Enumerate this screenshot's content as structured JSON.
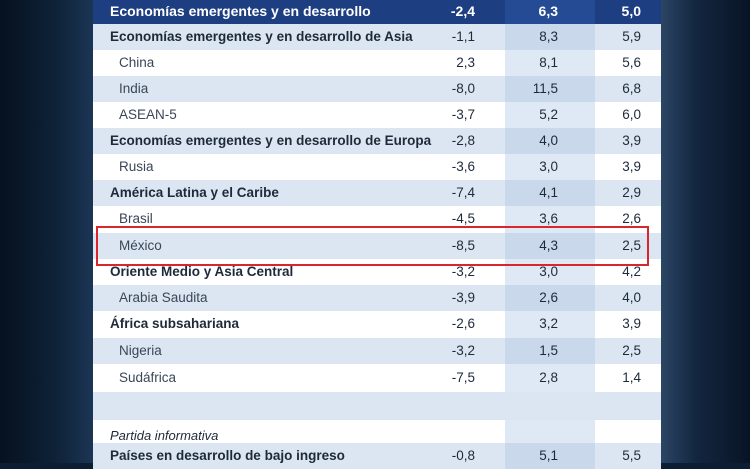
{
  "table": {
    "header": {
      "label": "Economías emergentes y en desarrollo",
      "v1": "-2,4",
      "v2": "6,3",
      "v3": "5,0"
    },
    "rows": [
      {
        "label": "Economías emergentes y en desarrollo de Asia",
        "v1": "-1,1",
        "v2": "8,3",
        "v3": "5,9"
      },
      {
        "label": "China",
        "v1": "2,3",
        "v2": "8,1",
        "v3": "5,6"
      },
      {
        "label": "India",
        "v1": "-8,0",
        "v2": "11,5",
        "v3": "6,8"
      },
      {
        "label": "ASEAN-5",
        "v1": "-3,7",
        "v2": "5,2",
        "v3": "6,0"
      },
      {
        "label": "Economías emergentes y en desarrollo de Europa",
        "v1": "-2,8",
        "v2": "4,0",
        "v3": "3,9"
      },
      {
        "label": "Rusia",
        "v1": "-3,6",
        "v2": "3,0",
        "v3": "3,9"
      },
      {
        "label": "América Latina y el Caribe",
        "v1": "-7,4",
        "v2": "4,1",
        "v3": "2,9"
      },
      {
        "label": "Brasil",
        "v1": "-4,5",
        "v2": "3,6",
        "v3": "2,6"
      },
      {
        "label": "México",
        "v1": "-8,5",
        "v2": "4,3",
        "v3": "2,5"
      },
      {
        "label": "Oriente Medio y Asia Central",
        "v1": "-3,2",
        "v2": "3,0",
        "v3": "4,2"
      },
      {
        "label": "Arabia Saudita",
        "v1": "-3,9",
        "v2": "2,6",
        "v3": "4,0"
      },
      {
        "label": "África subsahariana",
        "v1": "-2,6",
        "v2": "3,2",
        "v3": "3,9"
      },
      {
        "label": "Nigeria",
        "v1": "-3,2",
        "v2": "1,5",
        "v3": "2,5"
      },
      {
        "label": "Sudáfrica",
        "v1": "-7,5",
        "v2": "2,8",
        "v3": "1,4"
      }
    ],
    "memo": {
      "label": "Partida informativa",
      "row": {
        "label": "Países en desarrollo de bajo ingreso",
        "v1": "-0,8",
        "v2": "5,1",
        "v3": "5,5"
      }
    }
  },
  "colors": {
    "header_bg": "#1d3f82",
    "band": "#dbe6f2",
    "highlight": "#d9262e"
  }
}
